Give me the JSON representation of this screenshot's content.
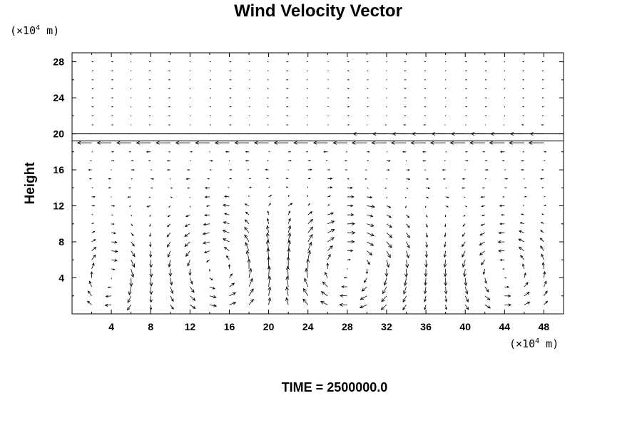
{
  "chart_data": {
    "type": "quiver",
    "title": "Wind Velocity Vector",
    "xlabel": "",
    "ylabel": "Height",
    "x_unit_base": "(×10",
    "x_unit_exp": "4",
    "x_unit_tail": " m)",
    "y_unit_base": "(×10",
    "y_unit_exp": "4",
    "y_unit_tail": " m)",
    "xlim": [
      0,
      50
    ],
    "ylim": [
      0,
      29
    ],
    "x_ticks": [
      4,
      8,
      12,
      16,
      20,
      24,
      28,
      32,
      36,
      40,
      44,
      48
    ],
    "y_ticks": [
      4,
      8,
      12,
      16,
      20,
      24,
      28
    ],
    "x_tick_labels": [
      "4",
      "8",
      "12",
      "16",
      "20",
      "24",
      "28",
      "32",
      "36",
      "40",
      "44",
      "48"
    ],
    "y_tick_labels": [
      "4",
      "8",
      "12",
      "16",
      "20",
      "24",
      "28"
    ],
    "grid": false,
    "grid_spacing": {
      "dx": 2,
      "dy": 1
    },
    "vortices": [
      {
        "xc": 4,
        "yc": 4,
        "rx": 3,
        "ry": 4,
        "sign": -1,
        "strength": 1.0
      },
      {
        "xc": 15,
        "yc": 5,
        "rx": 5.5,
        "ry": 5,
        "sign": 1,
        "strength": 1.1
      },
      {
        "xc": 28,
        "yc": 5,
        "rx": 6.5,
        "ry": 5.5,
        "sign": -1,
        "strength": 1.2
      },
      {
        "xc": 44,
        "yc": 4.5,
        "rx": 5,
        "ry": 4.5,
        "sign": 1,
        "strength": 1.0
      }
    ],
    "jets": [
      {
        "y": 19,
        "u": -2.2,
        "x_from": 0,
        "x_to": 50
      },
      {
        "y": 20,
        "u": -2.0,
        "x_from": 30,
        "x_to": 50
      }
    ],
    "reference_lines_y": [
      19.2,
      20
    ]
  },
  "footer": {
    "time_label": "TIME = 2500000.0"
  }
}
